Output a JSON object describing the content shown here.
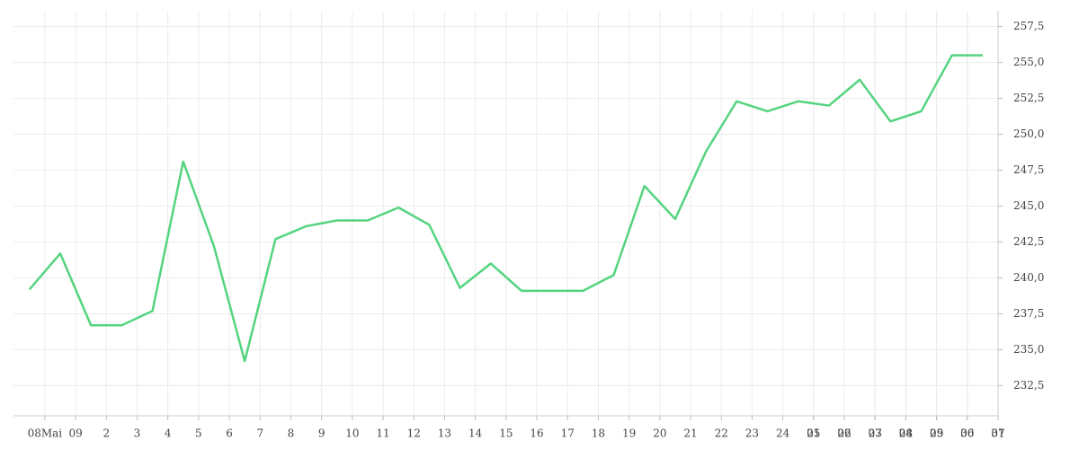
{
  "chart_data": {
    "type": "line",
    "x": [
      -0.5,
      0.5,
      1.5,
      2.5,
      3.5,
      4.5,
      5.5,
      6.5,
      7.5,
      8.5,
      9.5,
      10.5,
      11.5,
      12.5,
      13.5,
      14.5,
      15.5,
      16.5,
      17.5,
      18.5,
      19.5,
      20.5,
      21.5,
      22.5,
      23.5,
      24.5,
      25.5,
      26.5,
      27.5,
      28.5,
      29.5,
      30.5
    ],
    "series": [
      {
        "color": "#55d47f",
        "values": [
          239.2,
          241.7,
          236.7,
          236.7,
          237.7,
          248.1,
          242.2,
          234.2,
          242.7,
          243.6,
          244.0,
          244.0,
          244.9,
          243.7,
          239.3,
          241.0,
          239.1,
          239.1,
          239.1,
          240.2,
          246.4,
          244.1,
          248.8,
          252.3,
          251.6,
          252.3,
          252.0,
          253.8,
          250.9,
          251.6,
          255.5,
          255.5
        ]
      }
    ],
    "xlim": [
      -1.02,
      31
    ],
    "xticks": [
      {
        "value": 0,
        "label": "08Mai"
      },
      {
        "value": 1,
        "label": "09"
      },
      2,
      3,
      4,
      5,
      6,
      7,
      8,
      9,
      10,
      11,
      12,
      13,
      14,
      15,
      16,
      17,
      18,
      19,
      20,
      21,
      22,
      23,
      24,
      25,
      26,
      27,
      28,
      29,
      30,
      31,
      {
        "value": 25,
        "label": "01"
      },
      {
        "value": 26,
        "label": "02"
      },
      {
        "value": 27,
        "label": "03"
      },
      {
        "value": 28,
        "label": "04"
      },
      {
        "value": 29,
        "label": "05"
      },
      {
        "value": 30,
        "label": "06"
      },
      {
        "value": 31,
        "label": "07"
      }
    ],
    "ylim": [
      230.4,
      258.6
    ],
    "yticks": [
      {
        "value": 232.5,
        "label": "232,5"
      },
      {
        "value": 235,
        "label": "235,0"
      },
      {
        "value": 237.5,
        "label": "237,5"
      },
      {
        "value": 240,
        "label": "240,0"
      },
      {
        "value": 242.5,
        "label": "242,5"
      },
      {
        "value": 245,
        "label": "245,0"
      },
      {
        "value": 247.5,
        "label": "247,5"
      },
      {
        "value": 250,
        "label": "250,0"
      },
      {
        "value": 252.5,
        "label": "252,5"
      },
      {
        "value": 255,
        "label": "255,0"
      },
      {
        "value": 257.5,
        "label": "257,5"
      }
    ],
    "grid": true
  }
}
